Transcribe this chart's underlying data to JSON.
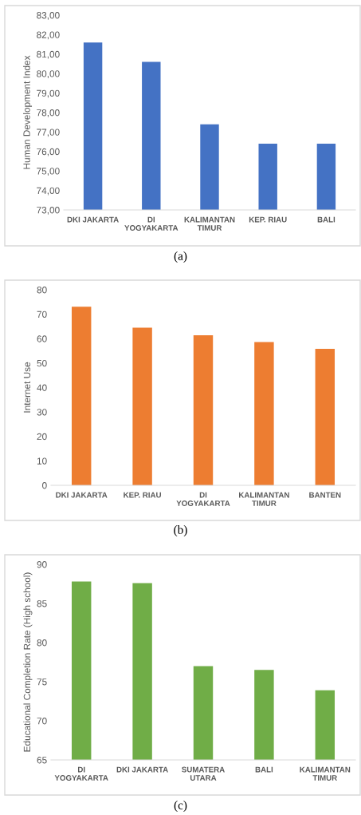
{
  "chart_data": [
    {
      "type": "bar",
      "categories": [
        "DKI JAKARTA",
        "DI\nYOGYAKARTA",
        "KALIMANTAN\nTIMUR",
        "KEP. RIAU",
        "BALI"
      ],
      "values": [
        81.6,
        80.6,
        77.4,
        76.4,
        76.4
      ],
      "color": "#4472c4",
      "ylabel": "Human Development Index",
      "ylim": [
        73,
        83
      ],
      "yticks": [
        {
          "value": 73,
          "label": "73,00"
        },
        {
          "value": 74,
          "label": "74,00"
        },
        {
          "value": 75,
          "label": "75,00"
        },
        {
          "value": 76,
          "label": "76,00"
        },
        {
          "value": 77,
          "label": "77,00"
        },
        {
          "value": 78,
          "label": "78,00"
        },
        {
          "value": 79,
          "label": "79,00"
        },
        {
          "value": 80,
          "label": "80,00"
        },
        {
          "value": 81,
          "label": "81,00"
        },
        {
          "value": 82,
          "label": "82,00"
        },
        {
          "value": 83,
          "label": "83,00"
        }
      ],
      "annotations": [
        "(a)"
      ]
    },
    {
      "type": "bar",
      "categories": [
        "DKI JAKARTA",
        "KEP. RIAU",
        "DI\nYOGYAKARTA",
        "KALIMANTAN\nTIMUR",
        "BANTEN"
      ],
      "values": [
        73.1,
        64.5,
        61.4,
        58.6,
        55.8
      ],
      "color": "#ed7d31",
      "ylabel": "Internet Use",
      "ylim": [
        0,
        80
      ],
      "yticks": [
        0,
        10,
        20,
        30,
        40,
        50,
        60,
        70,
        80
      ],
      "annotations": [
        "(b)"
      ]
    },
    {
      "type": "bar",
      "categories": [
        "DI\nYOGYAKARTA",
        "DKI JAKARTA",
        "SUMATERA\nUTARA",
        "BALI",
        "KALIMANTAN\nTIMUR"
      ],
      "values": [
        87.8,
        87.6,
        77.0,
        76.5,
        73.9
      ],
      "color": "#70ad47",
      "ylabel": "Educational Completion Rate (High school)",
      "ylim": [
        65,
        90
      ],
      "yticks": [
        65,
        70,
        75,
        80,
        85,
        90
      ],
      "annotations": [
        "(c)"
      ]
    }
  ]
}
